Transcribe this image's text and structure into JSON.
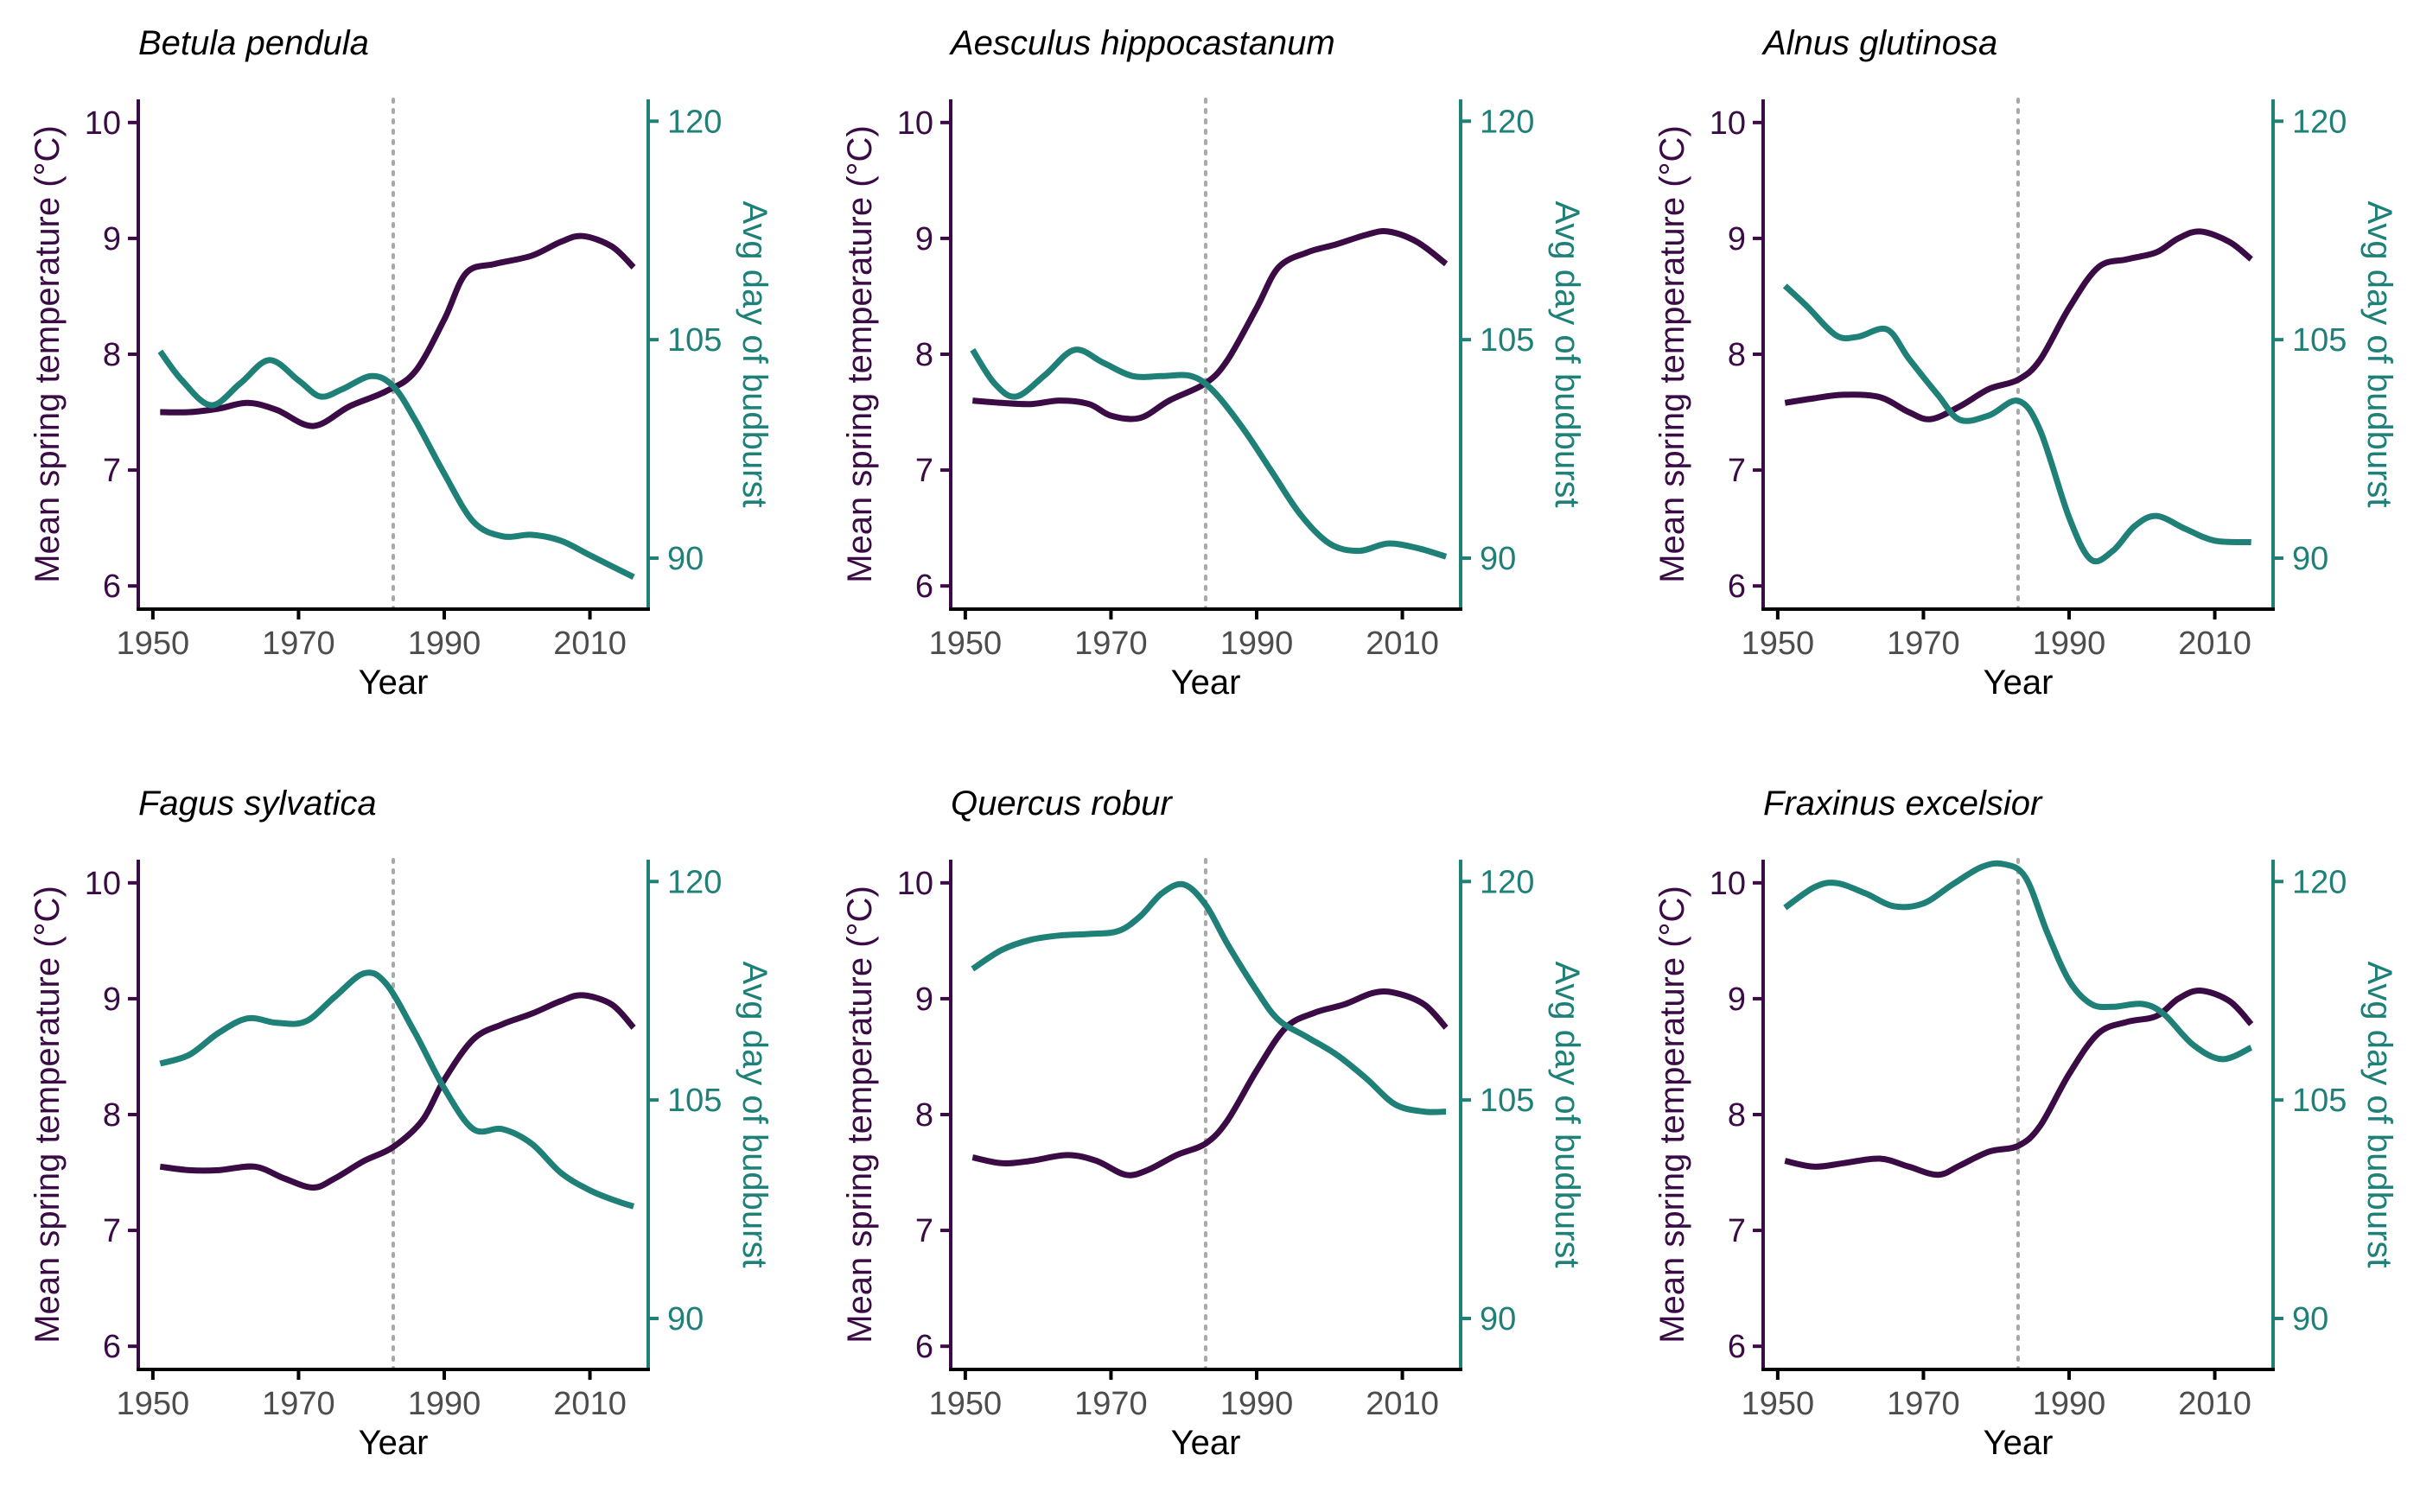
{
  "colors": {
    "temperature": "#3a0b45",
    "budburst": "#1e8077",
    "reference_line": "#aaaaaa",
    "x_axis": "#000000"
  },
  "chart_data": [
    {
      "type": "line",
      "title": "Betula pendula",
      "xlabel": "Year",
      "ylabel_left": "Mean spring temperature (°C)",
      "ylabel_right": "Avg day of budburst",
      "xlim": [
        1948,
        2018
      ],
      "ylim_left": [
        5.8,
        10.2
      ],
      "ylim_right": [
        86.5,
        121.5
      ],
      "xticks": [
        "1950",
        "1970",
        "1990",
        "2010"
      ],
      "yticks_left": [
        "6",
        "7",
        "8",
        "9",
        "10"
      ],
      "yticks_right": [
        "90",
        "105",
        "120"
      ],
      "reference_x": 1983,
      "series": [
        {
          "axis": "left",
          "x": [
            1951,
            1955,
            1959,
            1963,
            1967,
            1972,
            1977,
            1982,
            1986,
            1990,
            1993,
            1997,
            2002,
            2006,
            2009,
            2013,
            2016
          ],
          "y": [
            7.5,
            7.5,
            7.53,
            7.58,
            7.52,
            7.38,
            7.55,
            7.68,
            7.85,
            8.3,
            8.7,
            8.78,
            8.85,
            8.97,
            9.02,
            8.93,
            8.75
          ]
        },
        {
          "axis": "right",
          "x": [
            1951,
            1954,
            1958,
            1962,
            1966,
            1970,
            1973,
            1976,
            1980,
            1983,
            1986,
            1990,
            1994,
            1998,
            2002,
            2006,
            2010,
            2016
          ],
          "y": [
            104.2,
            102.2,
            100.5,
            102,
            103.6,
            102.2,
            101.1,
            101.6,
            102.5,
            101.8,
            99.5,
            95.8,
            92.5,
            91.5,
            91.6,
            91.2,
            90.2,
            88.7
          ]
        }
      ]
    },
    {
      "type": "line",
      "title": "Aesculus hippocastanum",
      "xlabel": "Year",
      "ylabel_left": "Mean spring temperature (°C)",
      "ylabel_right": "Avg day of budburst",
      "xlim": [
        1948,
        2018
      ],
      "ylim_left": [
        5.8,
        10.2
      ],
      "ylim_right": [
        86.5,
        121.5
      ],
      "xticks": [
        "1950",
        "1970",
        "1990",
        "2010"
      ],
      "yticks_left": [
        "6",
        "7",
        "8",
        "9",
        "10"
      ],
      "yticks_right": [
        "90",
        "105",
        "120"
      ],
      "reference_x": 1983,
      "series": [
        {
          "axis": "left",
          "x": [
            1951,
            1955,
            1959,
            1963,
            1967,
            1970,
            1974,
            1978,
            1983,
            1986,
            1990,
            1993,
            1997,
            2001,
            2005,
            2008,
            2012,
            2016
          ],
          "y": [
            7.6,
            7.58,
            7.57,
            7.6,
            7.57,
            7.47,
            7.45,
            7.6,
            7.75,
            7.95,
            8.4,
            8.75,
            8.88,
            8.95,
            9.03,
            9.06,
            8.97,
            8.78
          ]
        },
        {
          "axis": "right",
          "x": [
            1951,
            1954,
            1957,
            1961,
            1965,
            1969,
            1973,
            1977,
            1981,
            1984,
            1988,
            1992,
            1996,
            2000,
            2004,
            2008,
            2012,
            2016
          ],
          "y": [
            104.3,
            102,
            101.1,
            102.6,
            104.3,
            103.4,
            102.5,
            102.5,
            102.5,
            101.5,
            99,
            96,
            93,
            91,
            90.5,
            91,
            90.7,
            90.1
          ]
        }
      ]
    },
    {
      "type": "line",
      "title": "Alnus glutinosa",
      "xlabel": "Year",
      "ylabel_left": "Mean spring temperature (°C)",
      "ylabel_right": "Avg day of budburst",
      "xlim": [
        1948,
        2018
      ],
      "ylim_left": [
        5.8,
        10.2
      ],
      "ylim_right": [
        86.5,
        121.5
      ],
      "xticks": [
        "1950",
        "1970",
        "1990",
        "2010"
      ],
      "yticks_left": [
        "6",
        "7",
        "8",
        "9",
        "10"
      ],
      "yticks_right": [
        "90",
        "105",
        "120"
      ],
      "reference_x": 1983,
      "series": [
        {
          "axis": "left",
          "x": [
            1951,
            1955,
            1959,
            1964,
            1968,
            1971,
            1975,
            1979,
            1983,
            1986,
            1990,
            1994,
            1998,
            2002,
            2005,
            2008,
            2012,
            2015
          ],
          "y": [
            7.58,
            7.62,
            7.65,
            7.63,
            7.5,
            7.44,
            7.55,
            7.7,
            7.78,
            7.95,
            8.4,
            8.75,
            8.82,
            8.88,
            9.0,
            9.06,
            8.97,
            8.82
          ]
        },
        {
          "axis": "right",
          "x": [
            1951,
            1954,
            1958,
            1961,
            1965,
            1968,
            1972,
            1975,
            1979,
            1983,
            1986,
            1990,
            1993,
            1996,
            1999,
            2002,
            2006,
            2010,
            2015
          ],
          "y": [
            108.7,
            107.3,
            105.3,
            105.2,
            105.7,
            103.7,
            101.2,
            99.5,
            99.8,
            100.8,
            98.8,
            92.8,
            89.9,
            90.5,
            92.2,
            92.9,
            92,
            91.2,
            91.1
          ]
        }
      ]
    },
    {
      "type": "line",
      "title": "Fagus sylvatica",
      "xlabel": "Year",
      "ylabel_left": "Mean spring temperature (°C)",
      "ylabel_right": "Avg day of budburst",
      "xlim": [
        1948,
        2018
      ],
      "ylim_left": [
        5.8,
        10.2
      ],
      "ylim_right": [
        86.5,
        121.5
      ],
      "xticks": [
        "1950",
        "1970",
        "1990",
        "2010"
      ],
      "yticks_left": [
        "6",
        "7",
        "8",
        "9",
        "10"
      ],
      "yticks_right": [
        "90",
        "105",
        "120"
      ],
      "reference_x": 1983,
      "series": [
        {
          "axis": "left",
          "x": [
            1951,
            1955,
            1959,
            1964,
            1968,
            1972,
            1975,
            1979,
            1983,
            1987,
            1990,
            1994,
            1998,
            2002,
            2006,
            2009,
            2013,
            2016
          ],
          "y": [
            7.55,
            7.52,
            7.52,
            7.55,
            7.45,
            7.37,
            7.45,
            7.6,
            7.72,
            7.95,
            8.3,
            8.65,
            8.78,
            8.87,
            8.98,
            9.03,
            8.95,
            8.75
          ]
        },
        {
          "axis": "right",
          "x": [
            1951,
            1955,
            1959,
            1963,
            1967,
            1971,
            1975,
            1979,
            1982,
            1986,
            1990,
            1994,
            1998,
            2002,
            2006,
            2010,
            2014,
            2016
          ],
          "y": [
            107.5,
            108.1,
            109.6,
            110.6,
            110.3,
            110.4,
            112.1,
            113.7,
            113,
            109.6,
            105.8,
            103,
            103,
            102,
            100,
            98.8,
            98,
            97.7
          ]
        }
      ]
    },
    {
      "type": "line",
      "title": "Quercus robur",
      "xlabel": "Year",
      "ylabel_left": "Mean spring temperature (°C)",
      "ylabel_right": "Avg day of budburst",
      "xlim": [
        1948,
        2018
      ],
      "ylim_left": [
        5.8,
        10.2
      ],
      "ylim_right": [
        86.5,
        121.5
      ],
      "xticks": [
        "1950",
        "1970",
        "1990",
        "2010"
      ],
      "yticks_left": [
        "6",
        "7",
        "8",
        "9",
        "10"
      ],
      "yticks_right": [
        "90",
        "105",
        "120"
      ],
      "reference_x": 1983,
      "series": [
        {
          "axis": "left",
          "x": [
            1951,
            1955,
            1959,
            1964,
            1968,
            1972,
            1975,
            1979,
            1983,
            1986,
            1990,
            1994,
            1998,
            2002,
            2006,
            2009,
            2013,
            2016
          ],
          "y": [
            7.63,
            7.58,
            7.6,
            7.65,
            7.6,
            7.48,
            7.52,
            7.65,
            7.75,
            7.95,
            8.38,
            8.75,
            8.88,
            8.95,
            9.05,
            9.05,
            8.95,
            8.75
          ]
        },
        {
          "axis": "right",
          "x": [
            1951,
            1955,
            1959,
            1963,
            1967,
            1971,
            1974,
            1977,
            1980,
            1983,
            1986,
            1990,
            1993,
            1997,
            2001,
            2005,
            2009,
            2013,
            2016
          ],
          "y": [
            114,
            115.3,
            116,
            116.3,
            116.4,
            116.6,
            117.6,
            119.2,
            119.8,
            118.4,
            115.7,
            112.5,
            110.5,
            109.3,
            108.1,
            106.5,
            104.7,
            104.2,
            104.2
          ]
        }
      ]
    },
    {
      "type": "line",
      "title": "Fraxinus excelsior",
      "xlabel": "Year",
      "ylabel_left": "Mean spring temperature (°C)",
      "ylabel_right": "Avg day of budburst",
      "xlim": [
        1948,
        2018
      ],
      "ylim_left": [
        5.8,
        10.2
      ],
      "ylim_right": [
        86.5,
        121.5
      ],
      "xticks": [
        "1950",
        "1970",
        "1990",
        "2010"
      ],
      "yticks_left": [
        "6",
        "7",
        "8",
        "9",
        "10"
      ],
      "yticks_right": [
        "90",
        "105",
        "120"
      ],
      "reference_x": 1983,
      "series": [
        {
          "axis": "left",
          "x": [
            1951,
            1955,
            1959,
            1964,
            1968,
            1972,
            1975,
            1979,
            1983,
            1986,
            1990,
            1994,
            1998,
            2002,
            2005,
            2008,
            2012,
            2015
          ],
          "y": [
            7.6,
            7.55,
            7.58,
            7.62,
            7.55,
            7.48,
            7.56,
            7.68,
            7.73,
            7.9,
            8.35,
            8.7,
            8.8,
            8.85,
            9.0,
            9.07,
            8.98,
            8.78
          ]
        },
        {
          "axis": "right",
          "x": [
            1951,
            1955,
            1958,
            1962,
            1966,
            1970,
            1974,
            1978,
            1981,
            1984,
            1987,
            1990,
            1993,
            1996,
            2000,
            2003,
            2007,
            2011,
            2015
          ],
          "y": [
            118.2,
            119.6,
            119.9,
            119.2,
            118.3,
            118.5,
            119.8,
            121,
            121.2,
            120.3,
            116.5,
            113.2,
            111.6,
            111.4,
            111.6,
            110.9,
            108.8,
            107.8,
            108.6
          ]
        }
      ]
    }
  ]
}
